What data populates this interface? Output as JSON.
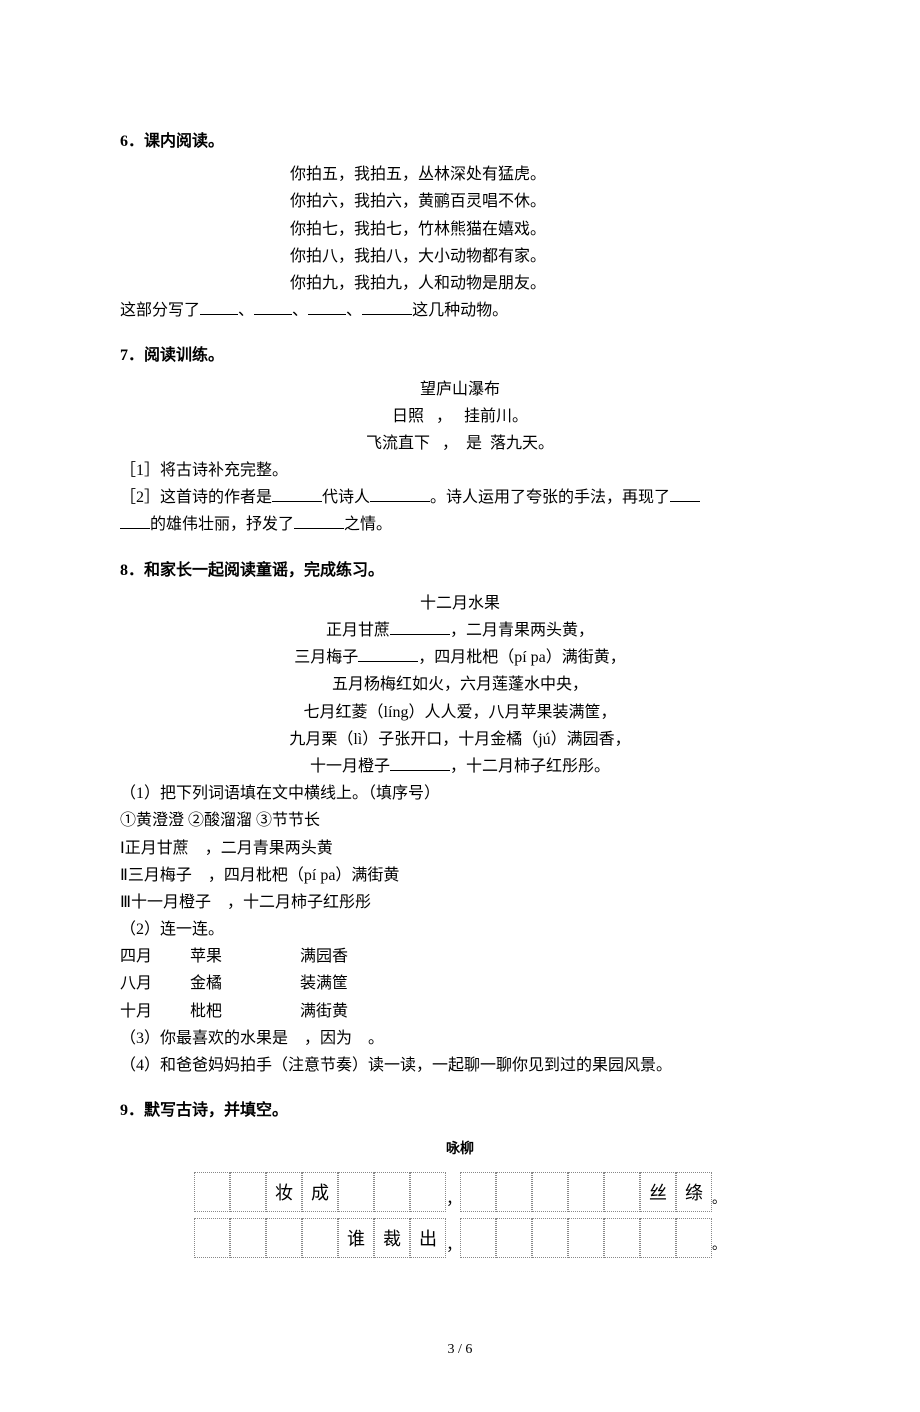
{
  "q6": {
    "heading": "6．课内阅读。",
    "lines": [
      "你拍五，我拍五，丛林深处有猛虎。",
      "你拍六，我拍六，黄鹂百灵唱不休。",
      "你拍七，我拍七，竹林熊猫在嬉戏。",
      "你拍八，我拍八，大小动物都有家。",
      "你拍九，我拍九，人和动物是朋友。"
    ],
    "summary_prefix": "这部分写了",
    "summary_suffix": "这几种动物。",
    "sep": "、"
  },
  "q7": {
    "heading": "7．阅读训练。",
    "title": "望庐山瀑布",
    "poem_line1_a": "日照",
    "poem_line1_b": "，",
    "poem_line1_c": "挂前川。",
    "poem_line2_a": "飞流直下",
    "poem_line2_b": "，",
    "poem_line2_c": "是",
    "poem_line2_d": "落九天。",
    "item1": "［1］将古诗补充完整。",
    "item2_a": "［2］这首诗的作者是",
    "item2_b": "代诗人",
    "item2_c": "。诗人运用了夸张的手法，再现了",
    "item2_d": "的雄伟壮丽，抒发了",
    "item2_e": "之情。"
  },
  "q8": {
    "heading": "8．和家长一起阅读童谣，完成练习。",
    "title": "十二月水果",
    "lines_a": [
      {
        "pre": "正月甘蔗",
        "post": "，二月青果两头黄，"
      },
      {
        "pre": "三月梅子",
        "post": "，四月枇杷（pí pa）满街黄，"
      }
    ],
    "lines_plain": [
      "五月杨梅红如火，六月莲蓬水中央，",
      "七月红菱（líng）人人爱，八月苹果装满筐，",
      "九月栗（lì）子张开口，十月金橘（jú）满园香，"
    ],
    "line_last": {
      "pre": "十一月橙子",
      "post": "，十二月柿子红彤彤。"
    },
    "sub1": "（1）把下列词语填在文中横线上。（填序号）",
    "options": "①黄澄澄 ②酸溜溜 ③节节长",
    "fill1": "Ⅰ正月甘蔗　，二月青果两头黄",
    "fill2": "Ⅱ三月梅子　，四月枇杷（pí pa）满街黄",
    "fill3": "Ⅲ十一月橙子　，十二月柿子红彤彤",
    "sub2": "（2）连一连。",
    "match": [
      {
        "c1": "四月",
        "c2": "苹果",
        "c3": "满园香"
      },
      {
        "c1": "八月",
        "c2": "金橘",
        "c3": "装满筐"
      },
      {
        "c1": "十月",
        "c2": "枇杷",
        "c3": "满街黄"
      }
    ],
    "sub3": "（3）你最喜欢的水果是　，因为　。",
    "sub4": "（4）和爸爸妈妈拍手（注意节奏）读一读，一起聊一聊你见到过的果园风景。"
  },
  "q9": {
    "heading": "9．默写古诗，并填空。",
    "table_title": "咏柳",
    "row1": [
      "",
      "",
      "妆",
      "成",
      "",
      "",
      "",
      "，",
      "",
      "",
      "",
      "",
      "",
      "丝",
      "绦",
      "。"
    ],
    "row2": [
      "",
      "",
      "",
      "",
      "谁",
      "裁",
      "出",
      "，",
      "",
      "",
      "",
      "",
      "",
      "",
      "",
      "。"
    ]
  },
  "footer": "3 / 6"
}
